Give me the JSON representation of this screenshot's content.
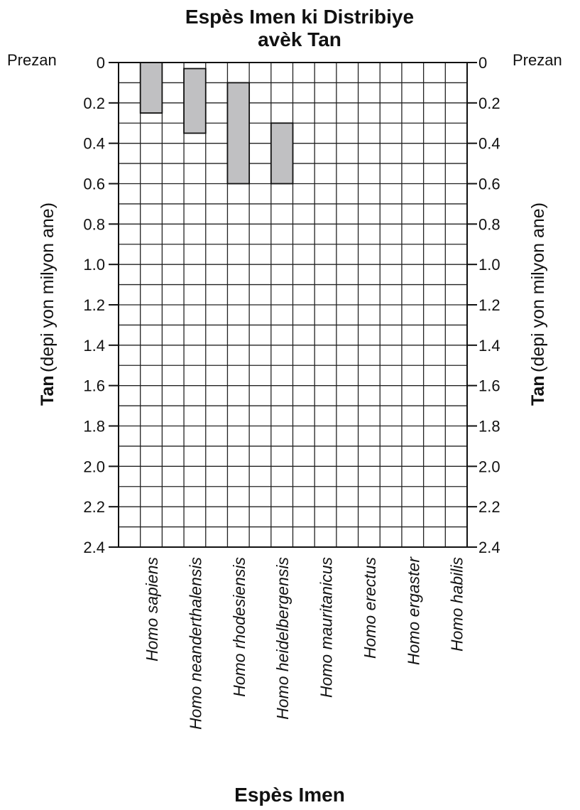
{
  "chart_data": {
    "type": "bar",
    "title_line1": "Espès Imen ki Distribiye",
    "title_line2": "avèk Tan",
    "xlabel": "Espès Imen",
    "ylabel_bold": "Tan",
    "ylabel_rest": "(depi yon milyon ane)",
    "top_label": "Prezan",
    "ylim": [
      0,
      2.4
    ],
    "y_inverted": true,
    "grid": true,
    "yticks": [
      "0",
      "0.2",
      "0.4",
      "0.6",
      "0.8",
      "1.0",
      "1.2",
      "1.4",
      "1.6",
      "1.8",
      "2.0",
      "2.2",
      "2.4"
    ],
    "categories": [
      "Homo sapiens",
      "Homo neanderthalensis",
      "Homo rhodesiensis",
      "Homo heidelbergensis",
      "Homo mauritanicus",
      "Homo erectus",
      "Homo ergaster",
      "Homo habilis"
    ],
    "series": [
      {
        "ranges": [
          [
            0,
            0.25
          ],
          [
            0.03,
            0.35
          ],
          [
            0.1,
            0.6
          ],
          [
            0.3,
            0.6
          ],
          null,
          null,
          null,
          null
        ]
      }
    ],
    "bar_color": "#c0c0c2"
  }
}
